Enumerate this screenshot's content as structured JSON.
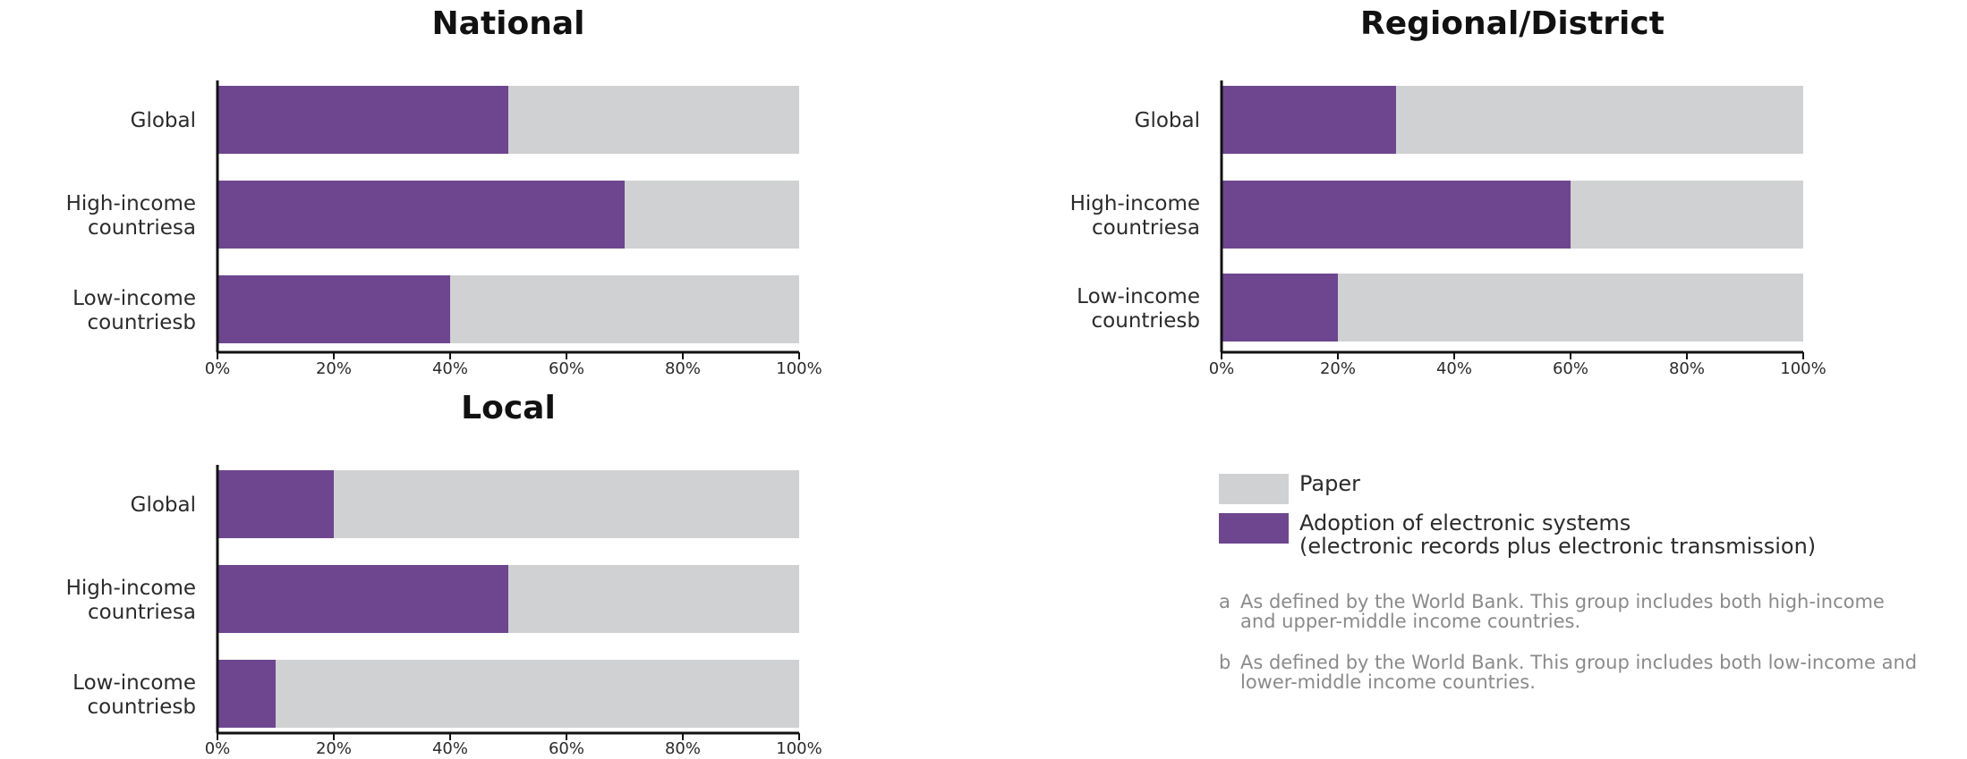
{
  "colors": {
    "paper": "#d0d1d3",
    "electronic": "#6d468f",
    "axis": "#111111"
  },
  "chart_data": [
    {
      "type": "bar",
      "orientation": "horizontal",
      "stacked": true,
      "title": "National",
      "categories": [
        "Global",
        "High-income countries",
        "Low-income countries"
      ],
      "category_lines": [
        [
          "Global",
          ""
        ],
        [
          "High-income",
          "countries"
        ],
        [
          "Low-income",
          "countries"
        ]
      ],
      "category_sup": [
        "",
        "a",
        "b"
      ],
      "series": [
        {
          "name": "Adoption of electronic systems (electronic records plus electronic transmission)",
          "values": [
            50,
            70,
            40
          ]
        },
        {
          "name": "Paper",
          "values": [
            50,
            30,
            60
          ]
        }
      ],
      "xlim": [
        0,
        100
      ],
      "xticks": [
        "0%",
        "20%",
        "40%",
        "60%",
        "80%",
        "100%"
      ]
    },
    {
      "type": "bar",
      "orientation": "horizontal",
      "stacked": true,
      "title": "Regional/District",
      "categories": [
        "Global",
        "High-income countries",
        "Low-income countries"
      ],
      "category_lines": [
        [
          "Global",
          ""
        ],
        [
          "High-income",
          "countries"
        ],
        [
          "Low-income",
          "countries"
        ]
      ],
      "category_sup": [
        "",
        "a",
        "b"
      ],
      "series": [
        {
          "name": "Adoption of electronic systems (electronic records plus electronic transmission)",
          "values": [
            30,
            60,
            20
          ]
        },
        {
          "name": "Paper",
          "values": [
            70,
            40,
            80
          ]
        }
      ],
      "xlim": [
        0,
        100
      ],
      "xticks": [
        "0%",
        "20%",
        "40%",
        "60%",
        "80%",
        "100%"
      ]
    },
    {
      "type": "bar",
      "orientation": "horizontal",
      "stacked": true,
      "title": "Local",
      "categories": [
        "Global",
        "High-income countries",
        "Low-income countries"
      ],
      "category_lines": [
        [
          "Global",
          ""
        ],
        [
          "High-income",
          "countries"
        ],
        [
          "Low-income",
          "countries"
        ]
      ],
      "category_sup": [
        "",
        "a",
        "b"
      ],
      "series": [
        {
          "name": "Adoption of electronic systems (electronic records plus electronic transmission)",
          "values": [
            20,
            50,
            10
          ]
        },
        {
          "name": "Paper",
          "values": [
            80,
            50,
            90
          ]
        }
      ],
      "xlim": [
        0,
        100
      ],
      "xticks": [
        "0%",
        "20%",
        "40%",
        "60%",
        "80%",
        "100%"
      ]
    }
  ],
  "legend": {
    "paper_label": "Paper",
    "electronic_label_line1": "Adoption of electronic systems",
    "electronic_label_line2": "(electronic records plus electronic transmission)"
  },
  "footnotes": [
    {
      "letter": "a",
      "text": "As defined by the World Bank. This group includes both high-income and upper-middle income countries."
    },
    {
      "letter": "b",
      "text": "As defined by the World Bank. This group includes both low-income and lower-middle income countries."
    }
  ]
}
